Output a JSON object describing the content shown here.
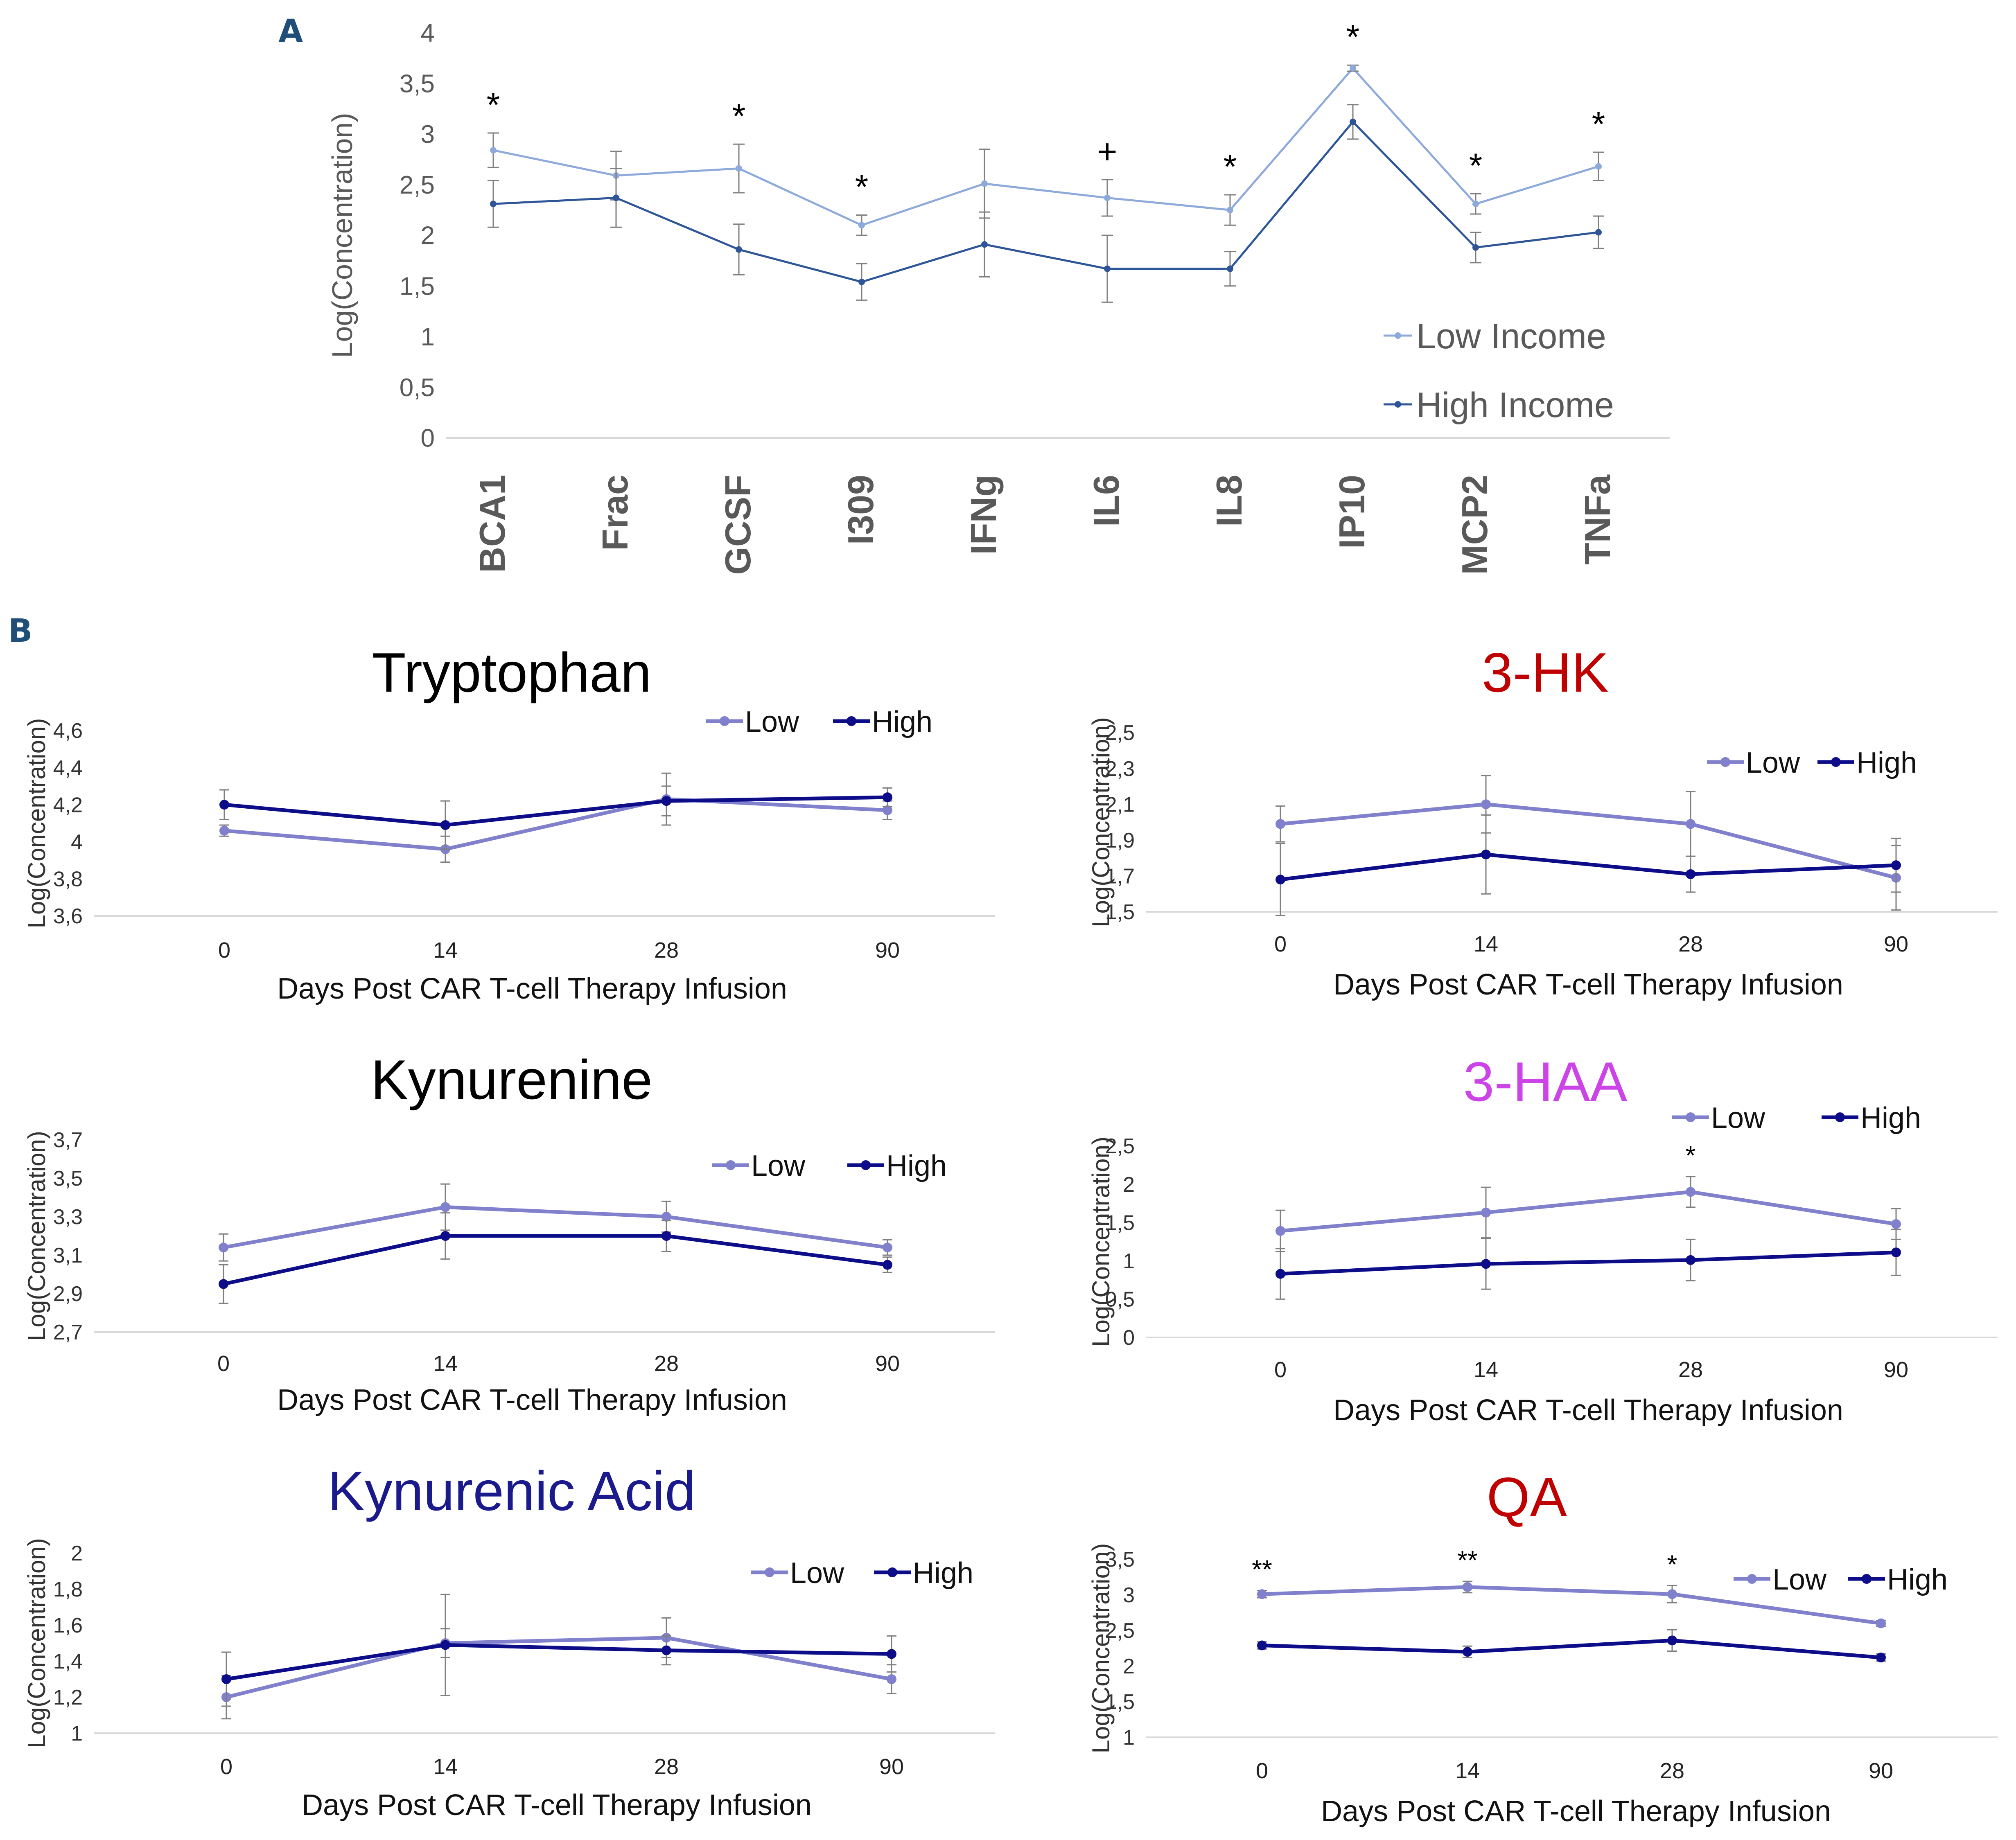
{
  "figure": {
    "panel_a_label": "A",
    "panel_b_label": "B",
    "colors": {
      "panel_label": "#1f4e79",
      "a_low": "#8eaadb",
      "a_high": "#2e5597",
      "b_low": "#8080cc",
      "b_high": "#0d0d8a",
      "axis_text_a": "#595959",
      "axis_line": "#d9d9d9",
      "error_bar": "#7f7f7f"
    }
  },
  "chart_data": [
    {
      "id": "A",
      "type": "line",
      "title": "",
      "ylabel": "Log(Concentration)",
      "xlabel": "",
      "ylim": [
        0,
        4
      ],
      "yticks": [
        0,
        0.5,
        1,
        1.5,
        2,
        2.5,
        3,
        3.5,
        4
      ],
      "ytick_labels": [
        "0",
        "0,5",
        "1",
        "1,5",
        "2",
        "2,5",
        "3",
        "3,5",
        "4"
      ],
      "categories": [
        "BCA1",
        "Frac",
        "GCSF",
        "I309",
        "IFNg",
        "IL6",
        "IL8",
        "IP10",
        "MCP2",
        "TNFa"
      ],
      "series": [
        {
          "name": "Low Income",
          "color": "#8eaadb",
          "values": [
            2.84,
            2.59,
            2.66,
            2.1,
            2.51,
            2.37,
            2.25,
            3.65,
            2.31,
            2.68
          ],
          "errors": [
            0.17,
            0.24,
            0.24,
            0.1,
            0.34,
            0.18,
            0.15,
            0.03,
            0.1,
            0.14
          ]
        },
        {
          "name": "High Income",
          "color": "#2e5597",
          "values": [
            2.31,
            2.37,
            1.86,
            1.54,
            1.91,
            1.67,
            1.67,
            3.12,
            1.88,
            2.03
          ],
          "errors": [
            0.23,
            0.29,
            0.25,
            0.18,
            0.32,
            0.33,
            0.17,
            0.17,
            0.15,
            0.16
          ]
        }
      ],
      "significance": [
        "*",
        "",
        "*",
        "*",
        "",
        "+",
        "*",
        "*",
        "*",
        "*"
      ],
      "legend": [
        "Low Income",
        "High Income"
      ]
    },
    {
      "id": "tryptophan",
      "type": "line",
      "title": "Tryptophan",
      "title_color": "#000000",
      "xlabel": "Days Post CAR T-cell Therapy Infusion",
      "ylabel": "Log(Concentration)",
      "categories": [
        "0",
        "14",
        "28",
        "90"
      ],
      "ylim": [
        3.6,
        4.6
      ],
      "yticks": [
        3.6,
        3.8,
        4,
        4.2,
        4.4,
        4.6
      ],
      "ytick_labels": [
        "3,6",
        "3,8",
        "4",
        "4,2",
        "4,4",
        "4,6"
      ],
      "series": [
        {
          "name": "Low",
          "values": [
            4.06,
            3.96,
            4.23,
            4.17
          ],
          "errors": [
            0.03,
            0.07,
            0.14,
            0.05
          ]
        },
        {
          "name": "High",
          "values": [
            4.2,
            4.09,
            4.22,
            4.24
          ],
          "errors": [
            0.08,
            0.13,
            0.08,
            0.05
          ]
        }
      ],
      "significance": [
        "",
        "",
        "",
        ""
      ],
      "legend": [
        "Low",
        "High"
      ]
    },
    {
      "id": "3hk",
      "type": "line",
      "title": "3-HK",
      "title_color": "#c00000",
      "xlabel": "Days Post CAR T-cell Therapy Infusion",
      "ylabel": "Log(Concentration)",
      "categories": [
        "0",
        "14",
        "28",
        "90"
      ],
      "ylim": [
        1.5,
        2.5
      ],
      "yticks": [
        1.5,
        1.7,
        1.9,
        2.1,
        2.3,
        2.5
      ],
      "ytick_labels": [
        "1,5",
        "1,7",
        "1,9",
        "2,1",
        "2,3",
        "2,5"
      ],
      "series": [
        {
          "name": "Low",
          "values": [
            1.99,
            2.1,
            1.99,
            1.69
          ],
          "errors": [
            0.1,
            0.16,
            0.18,
            0.18
          ]
        },
        {
          "name": "High",
          "values": [
            1.68,
            1.82,
            1.71,
            1.76
          ],
          "errors": [
            0.2,
            0.22,
            0.1,
            0.15
          ]
        }
      ],
      "significance": [
        "",
        "",
        "",
        ""
      ],
      "legend": [
        "Low",
        "High"
      ]
    },
    {
      "id": "kynurenine",
      "type": "line",
      "title": "Kynurenine",
      "title_color": "#000000",
      "xlabel": "Days Post CAR T-cell Therapy Infusion",
      "ylabel": "Log(Concentration)",
      "categories": [
        "0",
        "14",
        "28",
        "90"
      ],
      "ylim": [
        2.7,
        3.7
      ],
      "yticks": [
        2.7,
        2.9,
        3.1,
        3.3,
        3.5,
        3.7
      ],
      "ytick_labels": [
        "2,7",
        "2,9",
        "3,1",
        "3,3",
        "3,5",
        "3,7"
      ],
      "series": [
        {
          "name": "Low",
          "values": [
            3.14,
            3.35,
            3.3,
            3.14
          ],
          "errors": [
            0.07,
            0.12,
            0.08,
            0.04
          ]
        },
        {
          "name": "High",
          "values": [
            2.95,
            3.2,
            3.2,
            3.05
          ],
          "errors": [
            0.1,
            0.12,
            0.08,
            0.04
          ]
        }
      ],
      "significance": [
        "",
        "",
        "",
        ""
      ],
      "legend": [
        "Low",
        "High"
      ]
    },
    {
      "id": "3haa",
      "type": "line",
      "title": "3-HAA",
      "title_color": "#cc44e8",
      "xlabel": "Days Post CAR T-cell Therapy Infusion",
      "ylabel": "Log(Concentration)",
      "categories": [
        "0",
        "14",
        "28",
        "90"
      ],
      "ylim": [
        0,
        2.5
      ],
      "yticks": [
        0,
        0.5,
        1,
        1.5,
        2,
        2.5
      ],
      "ytick_labels": [
        "0",
        "0,5",
        "1",
        "1,5",
        "2",
        "2,5"
      ],
      "series": [
        {
          "name": "Low",
          "values": [
            1.39,
            1.63,
            1.9,
            1.48
          ],
          "errors": [
            0.27,
            0.33,
            0.2,
            0.2
          ]
        },
        {
          "name": "High",
          "values": [
            0.83,
            0.96,
            1.01,
            1.11
          ],
          "errors": [
            0.33,
            0.33,
            0.27,
            0.3
          ]
        }
      ],
      "significance": [
        "",
        "",
        "*",
        ""
      ],
      "legend": [
        "Low",
        "High"
      ]
    },
    {
      "id": "kynurenic_acid",
      "type": "line",
      "title": "Kynurenic Acid",
      "title_color": "#1a1a8c",
      "xlabel": "Days Post CAR T-cell Therapy Infusion",
      "ylabel": "Log(Concentration)",
      "categories": [
        "0",
        "14",
        "28",
        "90"
      ],
      "ylim": [
        1,
        2
      ],
      "yticks": [
        1,
        1.2,
        1.4,
        1.6,
        1.8,
        2
      ],
      "ytick_labels": [
        "1",
        "1,2",
        "1,4",
        "1,6",
        "1,8",
        "2"
      ],
      "series": [
        {
          "name": "Low",
          "values": [
            1.2,
            1.5,
            1.53,
            1.3
          ],
          "errors": [
            0.12,
            0.08,
            0.11,
            0.08
          ]
        },
        {
          "name": "High",
          "values": [
            1.3,
            1.49,
            1.46,
            1.44
          ],
          "errors": [
            0.15,
            0.28,
            0.08,
            0.1
          ]
        }
      ],
      "significance": [
        "",
        "",
        "",
        ""
      ],
      "legend": [
        "Low",
        "High"
      ]
    },
    {
      "id": "qa",
      "type": "line",
      "title": "QA",
      "title_color": "#c00000",
      "xlabel": "Days Post CAR T-cell Therapy Infusion",
      "ylabel": "Log(Concentration)",
      "categories": [
        "0",
        "14",
        "28",
        "90"
      ],
      "ylim": [
        1,
        3.5
      ],
      "yticks": [
        1,
        1.5,
        2,
        2.5,
        3,
        3.5
      ],
      "ytick_labels": [
        "1",
        "1,5",
        "2",
        "2,5",
        "3",
        "3,5"
      ],
      "series": [
        {
          "name": "Low",
          "values": [
            3.01,
            3.11,
            3.01,
            2.6
          ],
          "errors": [
            0.05,
            0.08,
            0.12,
            0.04
          ]
        },
        {
          "name": "High",
          "values": [
            2.29,
            2.2,
            2.36,
            2.12
          ],
          "errors": [
            0.05,
            0.08,
            0.15,
            0.05
          ]
        }
      ],
      "significance": [
        "**",
        "**",
        "*",
        ""
      ],
      "legend": [
        "Low",
        "High"
      ]
    }
  ]
}
